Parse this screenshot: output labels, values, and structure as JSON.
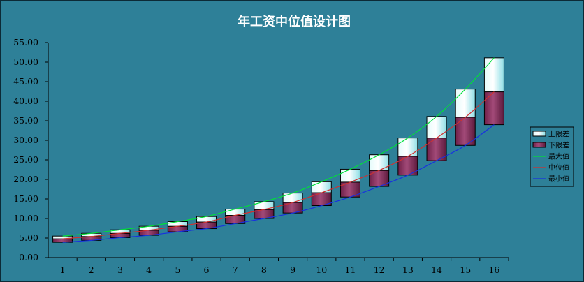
{
  "chart_data": {
    "type": "bar",
    "title": "年工资中位值设计图",
    "xlabel": "",
    "ylabel": "",
    "categories": [
      "1",
      "2",
      "3",
      "4",
      "5",
      "6",
      "7",
      "8",
      "9",
      "10",
      "11",
      "12",
      "13",
      "14",
      "15",
      "16"
    ],
    "ylim": [
      0,
      55
    ],
    "yticks": [
      "0.00",
      "5.00",
      "10.00",
      "15.00",
      "20.00",
      "25.00",
      "30.00",
      "35.00",
      "40.00",
      "45.00",
      "50.00",
      "55.00"
    ],
    "grid": false,
    "legend_position": "right",
    "stack_base": [
      3.9,
      4.4,
      5.1,
      5.7,
      6.6,
      7.4,
      8.7,
      10.0,
      11.4,
      13.3,
      15.5,
      18.2,
      21.1,
      24.8,
      28.7,
      34.0
    ],
    "series": [
      {
        "name": "上限差",
        "kind": "bar",
        "color": "#c8f4f6",
        "values": [
          0.7,
          0.8,
          0.9,
          1.0,
          1.2,
          1.4,
          1.6,
          2.0,
          2.4,
          2.8,
          3.3,
          4.0,
          4.7,
          5.5,
          7.2,
          8.7
        ]
      },
      {
        "name": "下限差",
        "kind": "bar",
        "color": "#8a2f5e",
        "values": [
          0.9,
          1.0,
          1.1,
          1.3,
          1.4,
          1.7,
          2.1,
          2.3,
          2.7,
          3.3,
          3.8,
          4.1,
          4.8,
          5.8,
          7.2,
          8.4
        ]
      },
      {
        "name": "最大值",
        "kind": "line",
        "color": "#00e038",
        "values": [
          5.5,
          6.2,
          7.1,
          8.0,
          9.2,
          10.5,
          12.4,
          14.3,
          16.5,
          19.4,
          22.6,
          26.3,
          30.6,
          36.1,
          43.1,
          51.1
        ]
      },
      {
        "name": "中位值",
        "kind": "line",
        "color": "#d23030",
        "values": [
          4.8,
          5.4,
          6.2,
          7.0,
          8.0,
          9.1,
          10.8,
          12.3,
          14.1,
          16.6,
          19.3,
          22.3,
          25.9,
          30.6,
          35.9,
          42.4
        ]
      },
      {
        "name": "最小值",
        "kind": "line",
        "color": "#1830e0",
        "values": [
          3.9,
          4.4,
          5.1,
          5.7,
          6.6,
          7.4,
          8.7,
          10.0,
          11.4,
          13.3,
          15.5,
          18.2,
          21.1,
          24.8,
          28.7,
          34.0
        ]
      }
    ]
  }
}
